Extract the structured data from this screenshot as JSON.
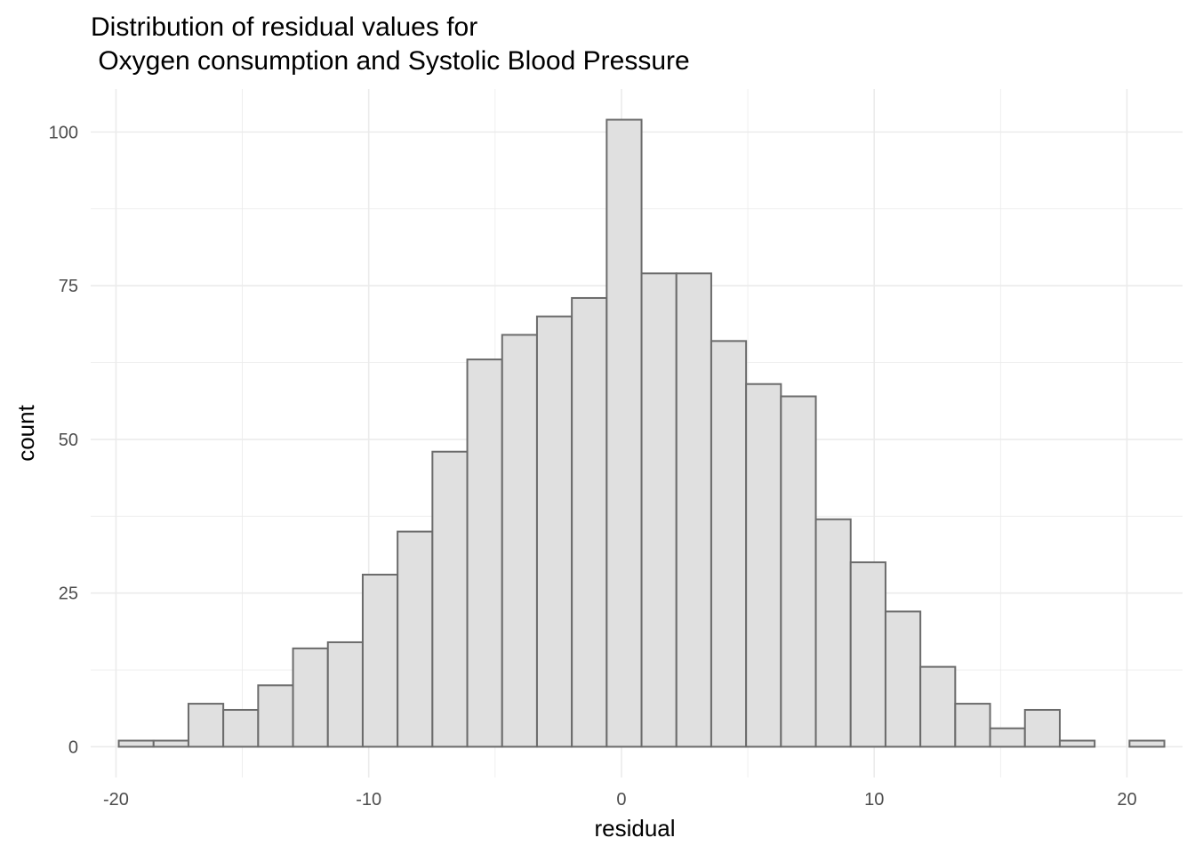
{
  "chart_data": {
    "type": "histogram",
    "title_lines": [
      "Distribution of residual values for",
      " Oxygen consumption and Systolic Blood Pressure"
    ],
    "xlabel": "residual",
    "ylabel": "count",
    "xlim": [
      -21,
      22.2
    ],
    "ylim": [
      -5,
      107
    ],
    "x_ticks": [
      -20,
      -10,
      0,
      10,
      20
    ],
    "x_tick_labels": [
      "-20",
      "-10",
      "0",
      "10",
      "20"
    ],
    "y_ticks": [
      0,
      25,
      50,
      75,
      100
    ],
    "y_tick_labels": [
      "0",
      "25",
      "50",
      "75",
      "100"
    ],
    "x_minor_ticks": [
      -15,
      -5,
      5,
      15
    ],
    "y_minor_ticks": [
      12.5,
      37.5,
      62.5,
      87.5
    ],
    "grid": true,
    "bin_start": -19.89,
    "bin_width": 1.379,
    "counts": [
      1,
      1,
      7,
      6,
      10,
      16,
      17,
      28,
      35,
      48,
      63,
      67,
      70,
      73,
      102,
      77,
      77,
      66,
      59,
      57,
      37,
      30,
      22,
      13,
      7,
      3,
      6,
      1,
      0,
      1
    ],
    "bar_fill": "#e0e0e0",
    "bar_stroke": "#6b6b6b"
  }
}
